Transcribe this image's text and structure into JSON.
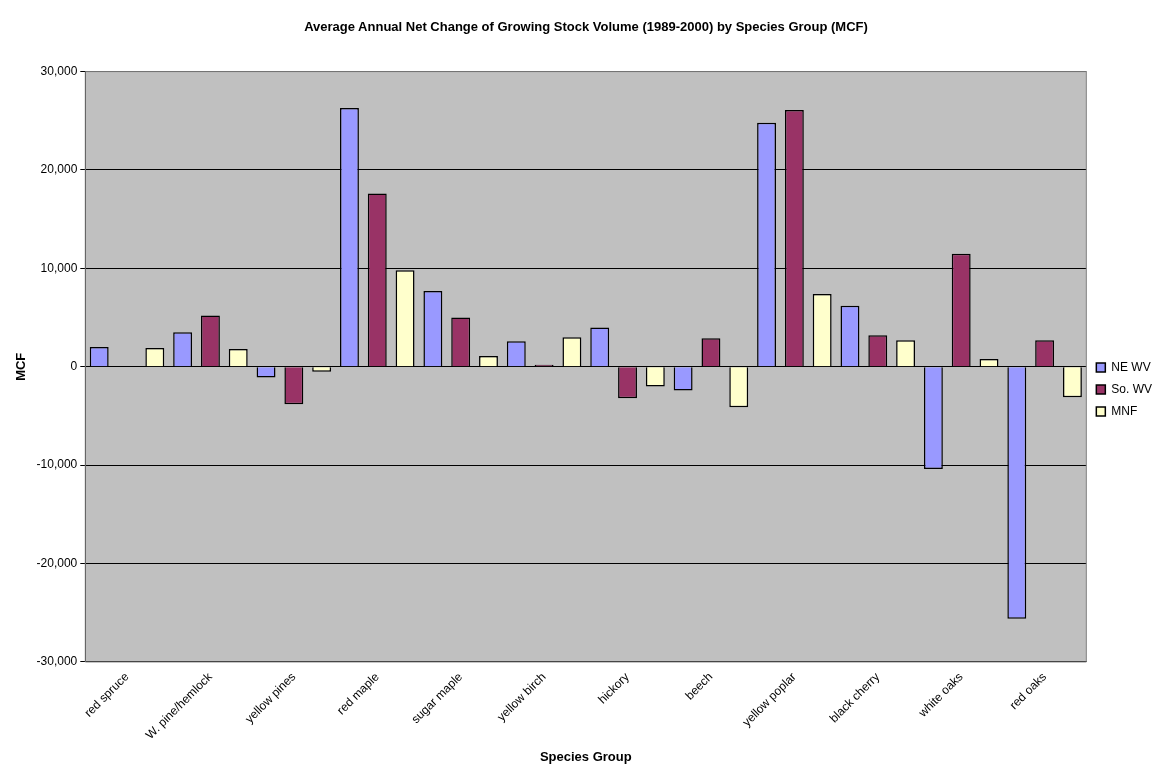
{
  "chart_data": {
    "type": "bar",
    "title": "Average Annual Net Change of Growing Stock Volume (1989-2000) by Species Group (MCF)",
    "xlabel": "Species Group",
    "ylabel": "MCF",
    "categories": [
      "red spruce",
      "W. pine/hemlock",
      "yellow pines",
      "red maple",
      "sugar maple",
      "yellow birch",
      "hickory",
      "beech",
      "yellow poplar",
      "black cherry",
      "white oaks",
      "red oaks"
    ],
    "series": [
      {
        "name": "NE WV",
        "color": "#9999ff",
        "values": [
          2000,
          3500,
          -1100,
          26300,
          7700,
          2600,
          4000,
          -2400,
          24800,
          6200,
          -10400,
          -25600
        ]
      },
      {
        "name": "So. WV",
        "color": "#993366",
        "values": [
          null,
          5200,
          -3800,
          17600,
          5000,
          200,
          -3200,
          2900,
          26100,
          3200,
          11500,
          2700
        ]
      },
      {
        "name": "MNF",
        "color": "#ffffcc",
        "values": [
          1900,
          1800,
          -500,
          9800,
          1100,
          3000,
          -2000,
          -4100,
          7400,
          2700,
          800,
          -3100
        ]
      }
    ],
    "ylim": [
      -30000,
      30000
    ],
    "yticks": [
      {
        "value": -30000,
        "label": "-30,000"
      },
      {
        "value": -20000,
        "label": "-20,000"
      },
      {
        "value": -10000,
        "label": "-10,000"
      },
      {
        "value": 0,
        "label": "0"
      },
      {
        "value": 10000,
        "label": "10,000"
      },
      {
        "value": 20000,
        "label": "20,000"
      },
      {
        "value": 30000,
        "label": "30,000"
      }
    ],
    "grid": "y",
    "legend": "right"
  }
}
